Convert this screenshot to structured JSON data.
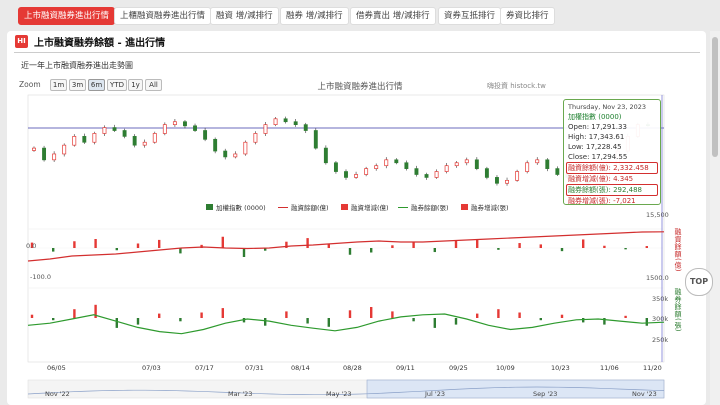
{
  "nav": {
    "tabs": [
      {
        "label": "上市融資融券進出行情",
        "active": true
      },
      {
        "label": "上櫃融資融券進出行情",
        "active": false
      },
      {
        "label": "融資 增/減排行",
        "active": false
      },
      {
        "label": "融券 增/減排行",
        "active": false
      },
      {
        "label": "借券賣出 增/減排行",
        "active": false
      },
      {
        "label": "資券互抵排行",
        "active": false
      },
      {
        "label": "券資比排行",
        "active": false
      }
    ]
  },
  "page": {
    "logo": "HI",
    "title": "上市融資融券餘額 - 進出行情",
    "subtitle": "近一年上市融資融券進出走勢圖"
  },
  "zoom": {
    "label": "Zoom",
    "buttons": [
      "1m",
      "3m",
      "6m",
      "YTD",
      "1y",
      "All"
    ],
    "selected": "6m"
  },
  "tooltip": {
    "date": "Thursday, Nov 23, 2023",
    "index_name": "加權指數 (0000)",
    "open_label": "Open:",
    "open": "17,291.33",
    "high_label": "High:",
    "high": "17,343.61",
    "low_label": "Low:",
    "low": "17,228.45",
    "close_label": "Close:",
    "close": "17,294.55",
    "margin_balance_label": "融資餘額(億):",
    "margin_balance": "2,332.458",
    "margin_change_label": "融資增減(億):",
    "margin_change": "4.345",
    "short_balance_label": "融券餘額(張):",
    "short_balance": "292,488",
    "short_change_label": "融券增減(張):",
    "short_change": "-7,021"
  },
  "top_button": "TOP",
  "colors": {
    "up": "#e53935",
    "down": "#2e7d32",
    "margin": "#d32f2f",
    "short": "#2e9a2e",
    "accent": "#e53935"
  },
  "chart_data": {
    "type": "candlestick+line+bar",
    "title": "上市融資融券進出行情",
    "watermark": "嗨投資 histock.tw",
    "legend": [
      "加權指數 (0000)",
      "融資餘額(億)",
      "融資增減(億)",
      "融券餘額(張)",
      "融券增減(張)"
    ],
    "x_tick_labels": [
      "06/05",
      "07/03",
      "07/17",
      "07/31",
      "08/14",
      "08/28",
      "09/11",
      "09/25",
      "10/09",
      "10/23",
      "11/06",
      "11/20"
    ],
    "navigator_labels": [
      "Nov '22",
      "Mar '23",
      "May '23",
      "Jul '23",
      "Sep '23",
      "Nov '23"
    ],
    "panes": [
      {
        "name": "加權指數 (0000)",
        "tick_labels": [
          "15,500"
        ],
        "ohlc_close": [
          16900,
          16700,
          16800,
          16950,
          17100,
          17000,
          17150,
          17250,
          17200,
          17100,
          16950,
          17000,
          17150,
          17300,
          17350,
          17280,
          17200,
          17050,
          16850,
          16750,
          16800,
          17000,
          17150,
          17300,
          17400,
          17350,
          17300,
          17200,
          16900,
          16650,
          16500,
          16400,
          16450,
          16550,
          16600,
          16700,
          16650,
          16550,
          16450,
          16400,
          16500,
          16600,
          16650,
          16700,
          16550,
          16400,
          16300,
          16350,
          16500,
          16650,
          16700,
          16550,
          16450,
          16400,
          16350,
          16250,
          16300,
          16550,
          16850,
          17100,
          17300,
          17294.55
        ]
      },
      {
        "name": "融資",
        "tick_labels": [
          "0.0",
          "-100.0",
          "1500.0"
        ],
        "right_label": "融資餘額(億)",
        "balance_series": [
          2040,
          2060,
          2090,
          2100,
          2110,
          2130,
          2150,
          2170,
          2180,
          2170,
          2165,
          2170,
          2190,
          2200,
          2215,
          2230,
          2240,
          2230,
          2230,
          2240,
          2250,
          2260,
          2270,
          2280,
          2290,
          2300,
          2310,
          2320,
          2330,
          2332.458
        ],
        "change_series": [
          12,
          -8,
          15,
          20,
          -5,
          10,
          18,
          -12,
          7,
          25,
          -20,
          -6,
          14,
          22,
          9,
          -15,
          -10,
          6,
          13,
          -9,
          16,
          20,
          -4,
          11,
          8,
          -7,
          19,
          5,
          -3,
          4.345
        ]
      },
      {
        "name": "融券",
        "tick_labels": [
          "350k",
          "300k",
          "250k"
        ],
        "right_label": "融券餘額(張)",
        "balance_series": [
          285000,
          290000,
          300000,
          310000,
          295000,
          280000,
          270000,
          265000,
          275000,
          290000,
          300000,
          295000,
          285000,
          278000,
          272000,
          280000,
          295000,
          305000,
          310000,
          312000,
          300000,
          285000,
          275000,
          280000,
          290000,
          298000,
          300000,
          295000,
          290000,
          292488
        ],
        "change_series": [
          3000,
          -2000,
          8000,
          12000,
          -9000,
          -6000,
          4000,
          -3000,
          5000,
          9000,
          -4000,
          -7000,
          6000,
          -5000,
          -8000,
          7000,
          10000,
          6000,
          -3000,
          -9000,
          -6000,
          4000,
          8000,
          5000,
          -2000,
          3000,
          -4000,
          -6000,
          2000,
          -7021
        ]
      }
    ]
  }
}
